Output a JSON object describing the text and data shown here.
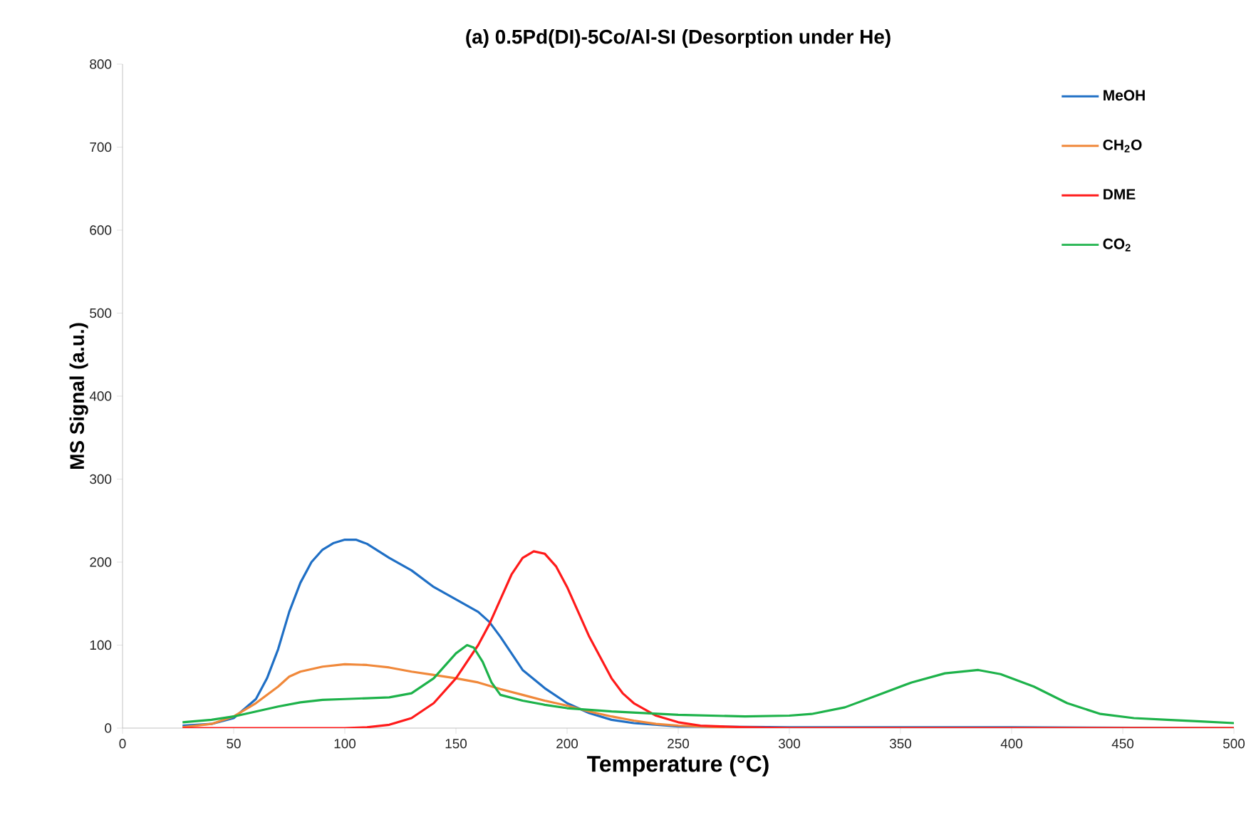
{
  "chart_data": {
    "type": "line",
    "title": "(a)   0.5Pd(DI)-5Co/Al-SI (Desorption under He)",
    "xlabel": "Temperature (°C)",
    "ylabel": "MS Signal (a.u.)",
    "xlim": [
      0,
      500
    ],
    "xticks": [
      0,
      50,
      100,
      150,
      200,
      250,
      300,
      350,
      400,
      450,
      500
    ],
    "ylim": [
      0,
      800
    ],
    "yticks": [
      0,
      100,
      200,
      300,
      400,
      500,
      600,
      700,
      800
    ],
    "legend": "top right",
    "marker": "none",
    "line_style": "solid",
    "series": [
      {
        "name": "MeOH",
        "color": "#1f6fc5",
        "x": [
          27,
          40,
          50,
          60,
          65,
          70,
          75,
          80,
          85,
          90,
          95,
          100,
          105,
          110,
          120,
          130,
          140,
          150,
          160,
          165,
          170,
          175,
          180,
          190,
          200,
          210,
          220,
          230,
          250,
          300,
          400,
          500
        ],
        "values": [
          3,
          5,
          12,
          35,
          60,
          95,
          140,
          175,
          200,
          215,
          223,
          227,
          227,
          222,
          205,
          190,
          170,
          155,
          140,
          128,
          110,
          90,
          70,
          48,
          30,
          18,
          10,
          6,
          2,
          1,
          1,
          0
        ]
      },
      {
        "name": "CH$_{2}$O",
        "color": "#f0883a",
        "x": [
          27,
          40,
          50,
          60,
          70,
          75,
          80,
          90,
          100,
          110,
          120,
          130,
          140,
          150,
          160,
          170,
          180,
          190,
          200,
          210,
          220,
          230,
          240,
          250,
          270,
          300,
          500
        ],
        "values": [
          1,
          5,
          14,
          30,
          50,
          62,
          68,
          74,
          77,
          76,
          73,
          68,
          64,
          60,
          55,
          47,
          40,
          33,
          27,
          20,
          14,
          9,
          5,
          3,
          1,
          0,
          0
        ]
      },
      {
        "name": "DME",
        "color": "#ff1a1a",
        "x": [
          27,
          100,
          110,
          120,
          130,
          140,
          150,
          160,
          165,
          170,
          175,
          180,
          185,
          190,
          195,
          200,
          205,
          210,
          215,
          220,
          225,
          230,
          240,
          250,
          260,
          280,
          300,
          500
        ],
        "values": [
          0,
          0,
          1,
          4,
          12,
          30,
          60,
          100,
          125,
          155,
          185,
          205,
          213,
          210,
          195,
          170,
          140,
          110,
          85,
          60,
          42,
          30,
          15,
          7,
          3,
          1,
          0,
          0
        ]
      },
      {
        "name": "CO$_{2}$",
        "color": "#1db24a",
        "x": [
          27,
          40,
          50,
          60,
          70,
          80,
          90,
          100,
          110,
          120,
          130,
          140,
          145,
          150,
          155,
          158,
          162,
          166,
          170,
          180,
          190,
          200,
          220,
          250,
          280,
          300,
          310,
          325,
          340,
          355,
          370,
          385,
          395,
          410,
          425,
          440,
          455,
          470,
          485,
          500
        ],
        "values": [
          7,
          10,
          14,
          20,
          26,
          31,
          34,
          35,
          36,
          37,
          42,
          60,
          75,
          90,
          100,
          97,
          80,
          55,
          40,
          33,
          28,
          24,
          20,
          16,
          14,
          15,
          17,
          25,
          40,
          55,
          66,
          70,
          65,
          50,
          30,
          17,
          12,
          10,
          8,
          6
        ]
      }
    ]
  }
}
